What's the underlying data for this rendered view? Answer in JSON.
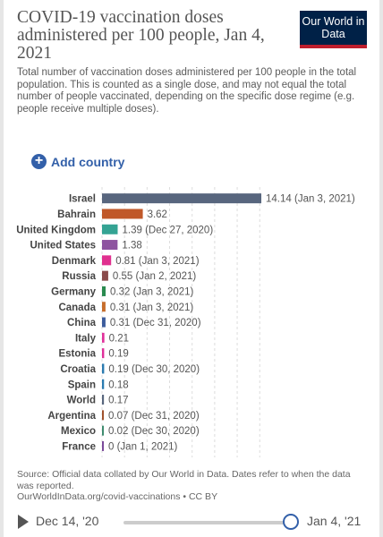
{
  "header": {
    "title": "COVID-19 vaccination doses administered per 100 people, Jan 4, 2021",
    "subtitle": "Total number of vaccination doses administered per 100 people in the total population. This is counted as a single dose, and may not equal the total number of people vaccinated, depending on the specific dose regime (e.g. people receive multiple doses).",
    "logo": "Our World in Data"
  },
  "controls": {
    "add_country_label": "Add country"
  },
  "chart_data": {
    "type": "bar",
    "orientation": "horizontal",
    "categories": [
      "Israel",
      "Bahrain",
      "United Kingdom",
      "United States",
      "Denmark",
      "Russia",
      "Germany",
      "Canada",
      "China",
      "Italy",
      "Estonia",
      "Croatia",
      "Spain",
      "World",
      "Argentina",
      "Mexico",
      "France"
    ],
    "values": [
      14.14,
      3.62,
      1.39,
      1.38,
      0.81,
      0.55,
      0.32,
      0.31,
      0.31,
      0.21,
      0.19,
      0.19,
      0.18,
      0.17,
      0.07,
      0.02,
      0
    ],
    "value_labels": [
      "14.14 (Jan 3, 2021)",
      "3.62",
      "1.39 (Dec 27, 2020)",
      "1.38",
      "0.81 (Jan 3, 2021)",
      "0.55 (Jan 2, 2021)",
      "0.32 (Jan 3, 2021)",
      "0.31 (Jan 3, 2021)",
      "0.31 (Dec 31, 2020)",
      "0.21",
      "0.19",
      "0.19 (Dec 30, 2020)",
      "0.18",
      "0.17",
      "0.07 (Dec 31, 2020)",
      "0.02 (Dec 30, 2020)",
      "0 (Jan 1, 2021)"
    ],
    "colors": [
      "#58667e",
      "#c05829",
      "#34a393",
      "#8e54a0",
      "#e0308f",
      "#8a4a4a",
      "#2a8a4f",
      "#c66d2b",
      "#3c5c9c",
      "#e0309a",
      "#e0309a",
      "#2b7bb0",
      "#2b7bb0",
      "#58667e",
      "#a0522d",
      "#3e8b6f",
      "#7a4a9a"
    ],
    "x_ticks": [
      0,
      2,
      4,
      6,
      8,
      10,
      12,
      14
    ],
    "xlim": [
      0,
      14.14
    ],
    "grid": true
  },
  "footer": {
    "source_line1": "Source: Official data collated by Our World in Data. Dates refer to when the data was reported.",
    "source_line2": "OurWorldInData.org/covid-vaccinations • CC BY"
  },
  "timeline": {
    "start_label": "Dec 14, '20",
    "end_label": "Jan 4, '21"
  }
}
